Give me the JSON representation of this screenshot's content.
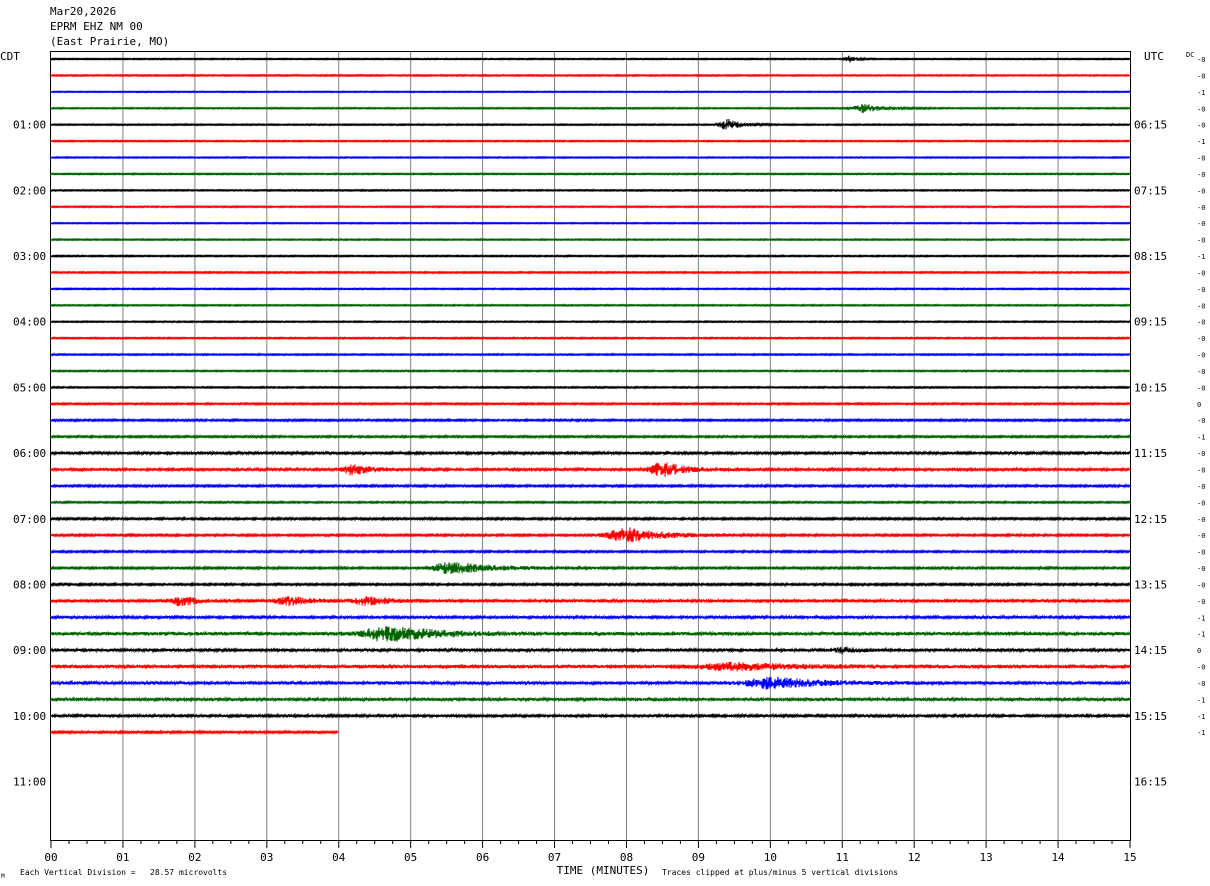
{
  "header": {
    "date": "Mar20,2026",
    "station": "EPRM EHZ NM 00",
    "location": "(East Prairie, MO)"
  },
  "labels": {
    "left_tz": "CDT",
    "right_tz": "UTC",
    "dc": "DC",
    "xaxis_title": "TIME (MINUTES)",
    "footer_left": "Each Vertical Division =   28.57 microvolts",
    "footer_right": "Traces clipped at plus/minus 5 vertical divisions",
    "corner_mark": "M"
  },
  "chart_data": {
    "type": "line",
    "title": "EPRM EHZ NM 00",
    "xlabel": "TIME (MINUTES)",
    "xlim": [
      0,
      15
    ],
    "x_ticks": [
      "00",
      "01",
      "02",
      "03",
      "04",
      "05",
      "06",
      "07",
      "08",
      "09",
      "10",
      "11",
      "12",
      "13",
      "14",
      "15"
    ],
    "left_hour_labels": [
      "01:00",
      "02:00",
      "03:00",
      "04:00",
      "05:00",
      "06:00",
      "07:00",
      "08:00",
      "09:00",
      "10:00",
      "11:00"
    ],
    "right_hour_labels": [
      "06:15",
      "07:15",
      "08:15",
      "09:15",
      "10:15",
      "11:15",
      "12:15",
      "13:15",
      "14:15",
      "15:15",
      "16:15"
    ],
    "trace_colors": [
      "#000000",
      "#ff0000",
      "#0000ff",
      "#006400"
    ],
    "trace_count": 42,
    "last_trace_end_minute": 4.0,
    "dc_offsets": [
      "-0",
      "-0",
      "-1",
      "-0",
      "-0",
      "-1",
      "-0",
      "-0",
      "-0",
      "-0",
      "-0",
      "-0",
      "-1",
      "-0",
      "-0",
      "-0",
      "-0",
      "-0",
      "-0",
      "-0",
      "-0",
      "0",
      "-0",
      "-1",
      "-0",
      "-0",
      "-0",
      "-0",
      "-0",
      "-0",
      "-0",
      "-0",
      "-0",
      "-0",
      "-1",
      "-1",
      "0",
      "-0",
      "-0",
      "-1",
      "-1",
      "-1"
    ],
    "noise_levels": [
      0.25,
      0.3,
      0.2,
      0.3,
      0.3,
      0.3,
      0.25,
      0.3,
      0.3,
      0.3,
      0.25,
      0.3,
      0.35,
      0.4,
      0.3,
      0.3,
      0.3,
      0.35,
      0.35,
      0.35,
      0.35,
      0.5,
      0.6,
      0.6,
      0.9,
      0.9,
      0.7,
      0.5,
      0.7,
      0.7,
      0.6,
      0.7,
      0.7,
      1.1,
      1.0,
      1.4,
      1.1,
      1.4,
      1.3,
      1.2,
      0.9,
      0.8
    ],
    "events": [
      {
        "trace": 0,
        "minute": 11.1,
        "amp": 1.5,
        "width": 0.15
      },
      {
        "trace": 3,
        "minute": 11.3,
        "amp": 2.0,
        "width": 0.4
      },
      {
        "trace": 4,
        "minute": 9.4,
        "amp": 3.0,
        "width": 0.3
      },
      {
        "trace": 25,
        "minute": 4.2,
        "amp": 2.5,
        "width": 0.4
      },
      {
        "trace": 25,
        "minute": 8.5,
        "amp": 3.5,
        "width": 0.5
      },
      {
        "trace": 29,
        "minute": 8.0,
        "amp": 3.5,
        "width": 0.8
      },
      {
        "trace": 31,
        "minute": 5.6,
        "amp": 2.5,
        "width": 1.0
      },
      {
        "trace": 33,
        "minute": 1.8,
        "amp": 2.5,
        "width": 0.3
      },
      {
        "trace": 33,
        "minute": 3.3,
        "amp": 2.0,
        "width": 0.5
      },
      {
        "trace": 33,
        "minute": 4.4,
        "amp": 2.0,
        "width": 0.5
      },
      {
        "trace": 35,
        "minute": 4.7,
        "amp": 3.5,
        "width": 1.0
      },
      {
        "trace": 36,
        "minute": 11.0,
        "amp": 1.5,
        "width": 0.3
      },
      {
        "trace": 37,
        "minute": 9.5,
        "amp": 1.5,
        "width": 1.5
      },
      {
        "trace": 38,
        "minute": 10.0,
        "amp": 2.5,
        "width": 1.0
      }
    ]
  }
}
